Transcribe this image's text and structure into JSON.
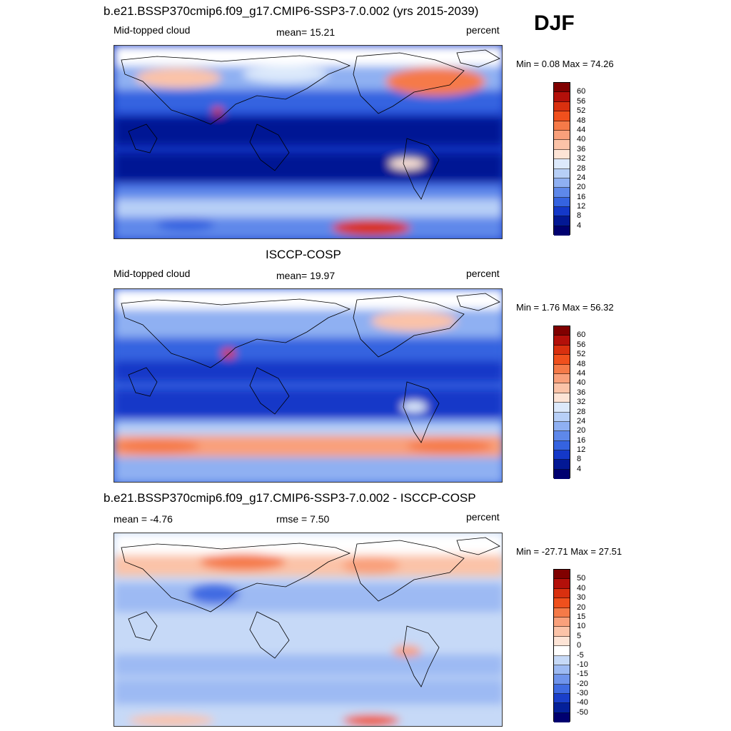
{
  "season": "DJF",
  "panels": [
    {
      "title": "b.e21.BSSP370cmip6.f09_g17.CMIP6-SSP3-7.0.002 (yrs 2015-2039)",
      "left": "Mid-topped cloud",
      "center": "mean=  15.21",
      "right": "percent",
      "minmax": "Min =   0.08 Max =  74.26",
      "colorbar_labels": [
        "60",
        "56",
        "52",
        "48",
        "44",
        "40",
        "36",
        "32",
        "28",
        "24",
        "20",
        "16",
        "12",
        "8",
        "4"
      ],
      "colorbar_colors": [
        "#800000",
        "#b3100a",
        "#d9300f",
        "#f0501d",
        "#f57a48",
        "#f9a07b",
        "#fbc3a8",
        "#fde4d6",
        "#dce9fb",
        "#b7cff7",
        "#8fb0f2",
        "#5e88ea",
        "#3563e0",
        "#1438c8",
        "#031894",
        "#000070"
      ]
    },
    {
      "title": "ISCCP-COSP",
      "left": "Mid-topped cloud",
      "center": "mean=  19.97",
      "right": "percent",
      "minmax": "Min =   1.76 Max =  56.32",
      "colorbar_labels": [
        "60",
        "56",
        "52",
        "48",
        "44",
        "40",
        "36",
        "32",
        "28",
        "24",
        "20",
        "16",
        "12",
        "8",
        "4"
      ],
      "colorbar_colors": [
        "#800000",
        "#b3100a",
        "#d9300f",
        "#f0501d",
        "#f57a48",
        "#f9a07b",
        "#fbc3a8",
        "#fde4d6",
        "#dce9fb",
        "#b7cff7",
        "#8fb0f2",
        "#5e88ea",
        "#3563e0",
        "#1438c8",
        "#031894",
        "#000070"
      ]
    },
    {
      "title": "b.e21.BSSP370cmip6.f09_g17.CMIP6-SSP3-7.0.002 - ISCCP-COSP",
      "left": "mean =  -4.76",
      "center": "rmse =   7.50",
      "right": "percent",
      "minmax": "Min = -27.71 Max =  27.51",
      "colorbar_labels": [
        "50",
        "40",
        "30",
        "20",
        "15",
        "10",
        "5",
        "0",
        "-5",
        "-10",
        "-15",
        "-20",
        "-30",
        "-40",
        "-50"
      ],
      "colorbar_colors": [
        "#800000",
        "#b3100a",
        "#d9300f",
        "#f0501d",
        "#f57a48",
        "#f9a07b",
        "#fbc3a8",
        "#fde4d6",
        "#ffffff",
        "#c6d9f7",
        "#9dbaf3",
        "#6f94ec",
        "#3f6be2",
        "#1a3fca",
        "#04209a",
        "#000070"
      ]
    }
  ]
}
